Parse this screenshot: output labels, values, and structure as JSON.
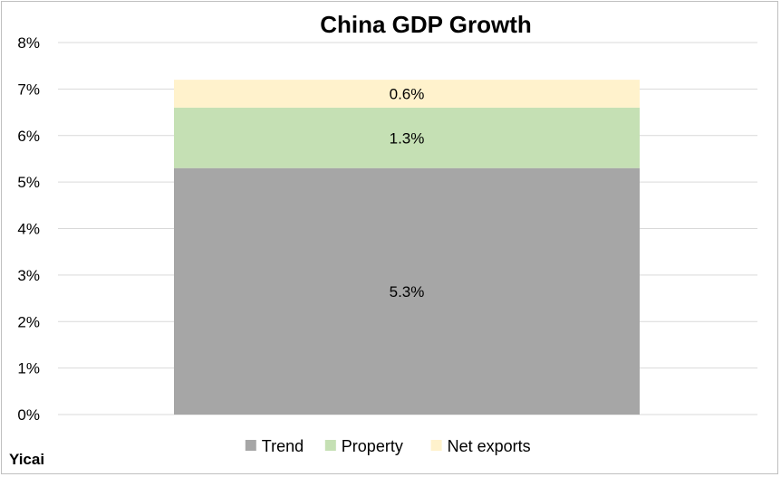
{
  "chart_data": {
    "type": "bar",
    "stacked": true,
    "title": "China GDP Growth",
    "xlabel": "",
    "ylabel": "",
    "ylim": [
      0,
      8
    ],
    "y_tick_step": 1,
    "y_tick_suffix": "%",
    "grid": true,
    "legend_position": "bottom",
    "categories": [
      ""
    ],
    "series": [
      {
        "name": "Trend",
        "values": [
          5.3
        ],
        "color": "#a6a6a6",
        "label": "5.3%"
      },
      {
        "name": "Property",
        "values": [
          1.3
        ],
        "color": "#c5e0b4",
        "label": "1.3%"
      },
      {
        "name": "Net exports",
        "values": [
          0.6
        ],
        "color": "#fff2cc",
        "label": "0.6%"
      }
    ]
  },
  "source_label": "Yicai"
}
